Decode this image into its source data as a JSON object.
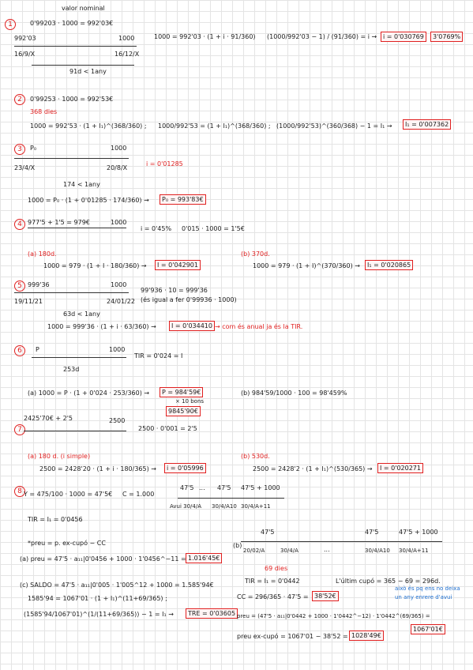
{
  "sections": [
    {
      "number": "1",
      "items": [
        "valor nominal",
        "0'99203 · 1000 = 992'03€",
        "992'03",
        "1000",
        "16/9/X",
        "16/12/X",
        "91d < 1any",
        "1000 = 992'03 · (1 + i · 91/360)",
        "(1000/992'03 − 1) / (91/360) = i →",
        "i = 0'030769",
        "3'0769%"
      ]
    },
    {
      "number": "2",
      "items": [
        "0'99253 · 1000 = 992'53€",
        "368 dies",
        "1000 = 992'53 · (1 + I₁)^(368/360) ;",
        "1000/992'53 = (1 + I₁)^(368/360) ;",
        "(1000/992'53)^(360/368) − 1 = I₁ →",
        "I₁ = 0'007362"
      ]
    },
    {
      "number": "3",
      "items": [
        "P₀",
        "1000",
        "23/4/X",
        "20/8/X",
        "i = 0'01285",
        "174 < 1any",
        "1000 = P₀ · (1 + 0'01285 · 174/360) →",
        "P₀ = 993'83€"
      ]
    },
    {
      "number": "4",
      "items": [
        "977'5 + 1'5 = 979€",
        "1000",
        "i = 0'45%",
        "0'015 · 1000 = 1'5€",
        "(a) 180d.",
        "1000 = 979 · (1 + I · 180/360) →",
        "I = 0'042901",
        "(b) 370d.",
        "1000 = 979 · (1 + I)^(370/360) →",
        "I₁ = 0'020865"
      ]
    },
    {
      "number": "5",
      "items": [
        "999'36",
        "1000",
        "19/11/21",
        "24/01/22",
        "99'936 · 10 = 999'36",
        "(és igual a fer 0'99936 · 1000)",
        "63d < 1any",
        "1000 = 999'36 · (1 + i · 63/360) →",
        "I = 0'034410",
        "→ com és anual ja és la TIR."
      ]
    },
    {
      "number": "6",
      "items": [
        "P",
        "1000",
        "TIR = 0'024 = I",
        "253d",
        "(a) 1000 = P · (1 + 0'024 · 253/360) →",
        "P = 984'59€",
        "× 10 bons",
        "9845'90€",
        "(b) 984'59/1000 · 100 = 98'459%"
      ]
    },
    {
      "number": "7",
      "items": [
        "2425'70€ + 2'5",
        "2500",
        "2500 · 0'001 = 2'5",
        "(a) 180 d. (i simple)",
        "2500 = 2428'20 · (1 + i · 180/365) →",
        "i = 0'05996",
        "(b) 530d.",
        "2500 = 2428'2 · (1 + I₁)^(530/365) →",
        "I = 0'020271"
      ]
    },
    {
      "number": "8",
      "items": [
        "Y = 475/100 · 1000 = 47'5€",
        "C = 1.000",
        "47'5",
        "...",
        "47'5",
        "47'5 + 1000",
        "Avui 30/4/A",
        "30/4/A10",
        "30/4/A+11",
        "TIR = I₁ = 0'0456",
        "*preu = p. ex-cupó − CC",
        "(a) preu = 47'5 · a₁₁|0'0456 + 1000 · 1'0456^−11 =",
        "1.016'45€",
        "(b)",
        "47'5",
        "47'5",
        "47'5 + 1000",
        "20/02/A",
        "30/4/A",
        "...",
        "30/4/A10",
        "30/4/A+11",
        "69 dies",
        "(c) SALDO = 47'5 · a₁₁|0'005 · 1'005^12 + 1000 = 1.585'94€",
        "1585'94 = 1067'01 · (1 + I₁)^(11+69/365) ;",
        "(1585'94/1067'01)^(1/(11+69/365)) − 1 = I₁ →",
        "TRE = 0'03605",
        "TIR = I₁ = 0'0442",
        "L'últim cupó = 365 − 69 = 296d.",
        "CC = 296/365 · 47'5 =",
        "38'52€",
        "això és pq ens no deixa un any enrere d'avui",
        "preu = (47'5 · a₁₁|0'0442 + 1000 · 1'0442^−12) · 1'0442^(69/365) =",
        "1067'01€",
        "preu ex-cupó = 1067'01 − 38'52 =",
        "1028'49€"
      ]
    }
  ]
}
